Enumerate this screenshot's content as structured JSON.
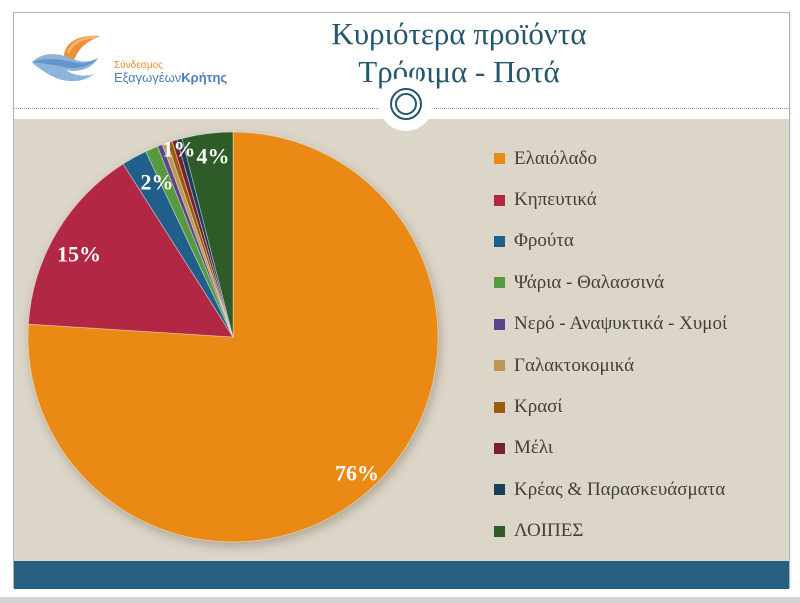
{
  "header": {
    "title_line1": "Κυριότερα προϊόντα",
    "title_line2": "Τρόφιμα - Ποτά"
  },
  "logo": {
    "line1": "Σύνδεσμος",
    "line2a": "Εξαγωγέων",
    "line2b": "Κρήτης"
  },
  "chart_data": {
    "type": "pie",
    "title": "Κυριότερα προϊόντα Τρόφιμα - Ποτά",
    "start_angle_deg": 0,
    "direction": "clockwise",
    "legend_position": "right",
    "labels_shown": [
      "76%",
      "15%",
      "2%",
      "1%",
      "4%"
    ],
    "series": [
      {
        "name": "Ελαιόλαδο",
        "value": 76,
        "label": "76%",
        "color": "#ea8a15"
      },
      {
        "name": "Κηπευτικά",
        "value": 15,
        "label": "15%",
        "color": "#b22744"
      },
      {
        "name": "Φρούτα",
        "value": 2,
        "label": "2%",
        "color": "#1f5f8a"
      },
      {
        "name": "Ψάρια - Θαλασσινά",
        "value": 1,
        "label": "1%",
        "color": "#56993f"
      },
      {
        "name": "Νερό - Αναψυκτικά - Χυμοί",
        "value": 0.4,
        "label": "",
        "color": "#5a458c"
      },
      {
        "name": "Γαλακτοκομικά",
        "value": 0.4,
        "label": "",
        "color": "#bd9853"
      },
      {
        "name": "Κρασί",
        "value": 0.4,
        "label": "",
        "color": "#9a5d0e"
      },
      {
        "name": "Μέλι",
        "value": 0.4,
        "label": "",
        "color": "#77212e"
      },
      {
        "name": "Κρέας & Παρασκευάσματα",
        "value": 0.4,
        "label": "",
        "color": "#173f5c"
      },
      {
        "name": "ΛΟΙΠΕΣ",
        "value": 4,
        "label": "4%",
        "color": "#2f5b28"
      }
    ]
  },
  "colors": {
    "title_text": "#23566f",
    "legend_text": "#423f37",
    "content_background": "#dcd6c9",
    "footer_bar": "#275f7e",
    "ornament_ring": "#24566c",
    "percent_label": "#ffffff"
  }
}
